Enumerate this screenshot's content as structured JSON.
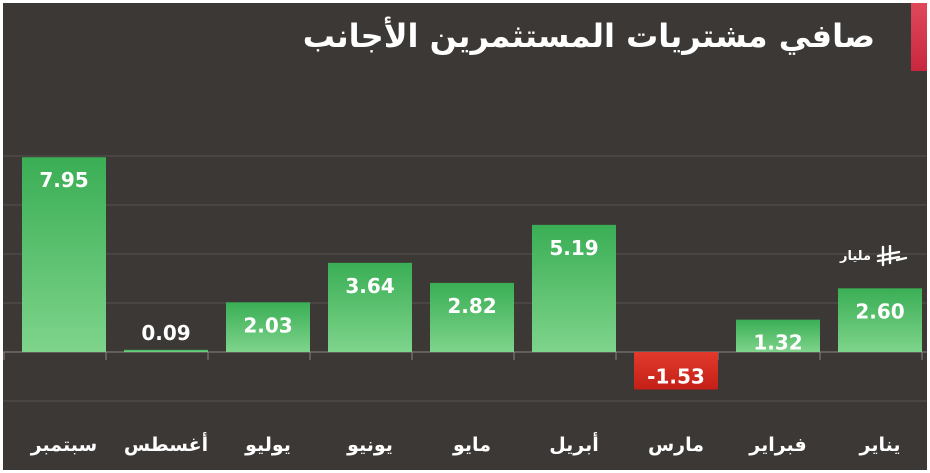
{
  "title": "صافي مشتريات المستثمرين الأجانب",
  "unit": {
    "label": "مليار",
    "icon": "saudi-riyal-sign-icon"
  },
  "colors": {
    "background": "#3c3835",
    "positive_bar": "#3fb35a",
    "negative_bar": "#d92a22",
    "accent": "#d43a4e",
    "text": "#ffffff"
  },
  "chart_data": {
    "type": "bar",
    "categories": [
      "يناير",
      "فبراير",
      "مارس",
      "أبريل",
      "مايو",
      "يونيو",
      "يوليو",
      "أغسطس",
      "سبتمبر"
    ],
    "values": [
      2.6,
      1.32,
      -1.53,
      5.19,
      2.82,
      3.64,
      2.03,
      0.09,
      7.95
    ],
    "value_labels": [
      "2.60",
      "1.32",
      "-1.53",
      "5.19",
      "2.82",
      "3.64",
      "2.03",
      "0.09",
      "7.95"
    ],
    "category_order": "right-to-left",
    "grid": true
  }
}
